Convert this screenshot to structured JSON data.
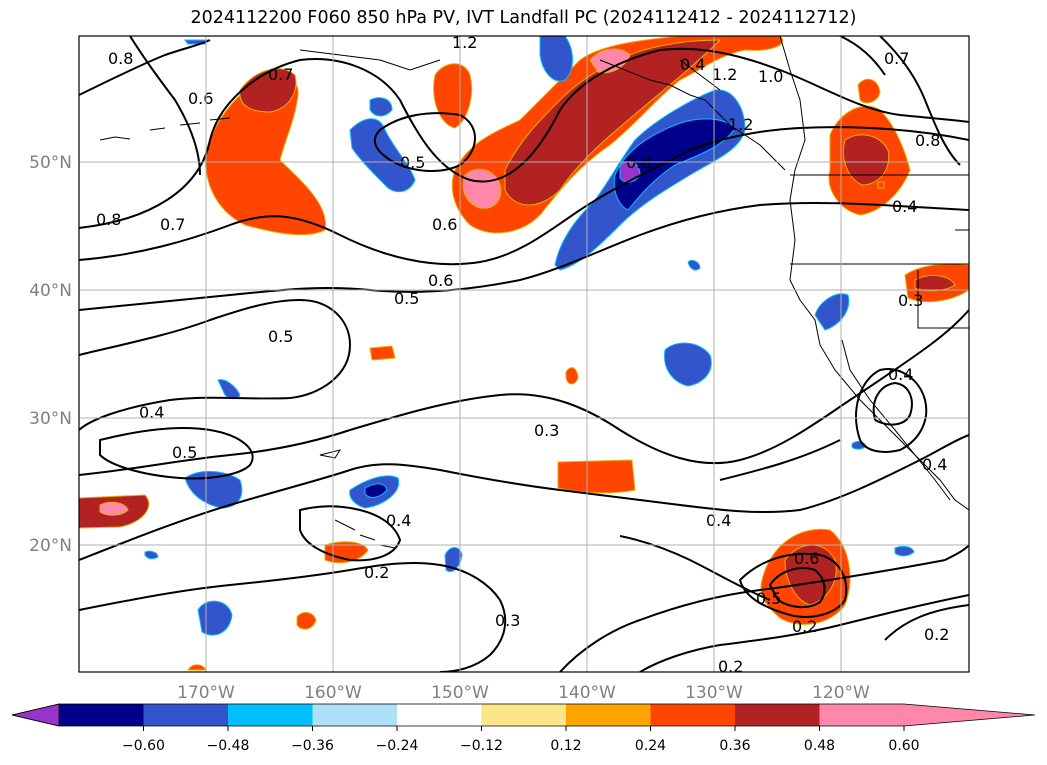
{
  "title": "2024112200 F060 850 hPa PV, IVT Landfall PC (2024112412 - 2024112712)",
  "lon_labels": [
    "170°W",
    "160°W",
    "150°W",
    "140°W",
    "130°W",
    "120°W"
  ],
  "lat_labels": [
    "50°N",
    "40°N",
    "30°N",
    "20°N"
  ],
  "colorbar": {
    "colors": [
      "#9933cc",
      "#00008b",
      "#3355cc",
      "#00bfff",
      "#aee0f8",
      "#ffffff",
      "#fde68a",
      "#ffa500",
      "#ff4500",
      "#b22222",
      "#ff88aa"
    ],
    "labels": [
      "−0.60",
      "−0.48",
      "−0.36",
      "−0.24",
      "−0.12",
      "0.12",
      "0.24",
      "0.36",
      "0.48",
      "0.60"
    ]
  },
  "contour_labels": [
    "0.8",
    "1.2",
    "0.7",
    "0.6",
    "0.8",
    "0.7",
    "0.5",
    "0.6",
    "0.5",
    "0.6",
    "0.5",
    "0.8",
    "0.4",
    "1.2",
    "1.0",
    "0.7",
    "0.8",
    "0.4",
    "0.3",
    "0.4",
    "0.5",
    "0.3",
    "0.4",
    "0.2",
    "0.3",
    "0.4",
    "0.5",
    "0.6",
    "0.2",
    "0.2",
    "0.2",
    "0.4",
    "1.2",
    "0.4"
  ]
}
